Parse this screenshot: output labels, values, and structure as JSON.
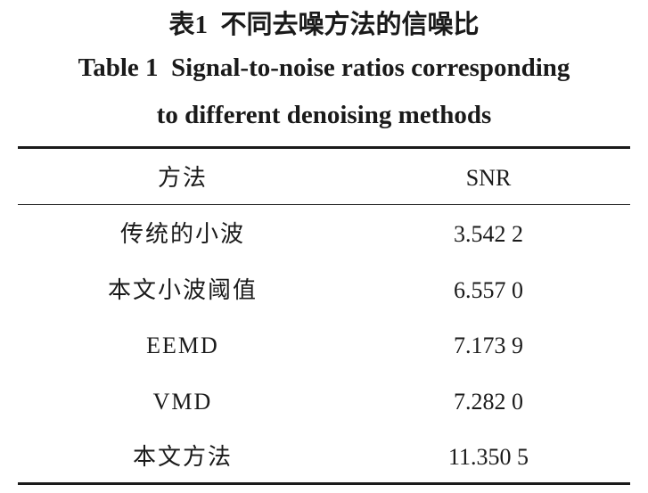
{
  "caption": {
    "title_cn": "表1  不同去噪方法的信噪比",
    "title_en_line1": "Table 1  Signal-to-noise ratios corresponding",
    "title_en_line2": "to different denoising methods"
  },
  "table": {
    "header": [
      "方法",
      "SNR"
    ],
    "rows": [
      [
        "传统的小波",
        "3.542 2"
      ],
      [
        "本文小波阈值",
        "6.557 0"
      ],
      [
        "EEMD",
        "7.173 9"
      ],
      [
        "VMD",
        "7.282 0"
      ],
      [
        "本文方法",
        "11.350 5"
      ]
    ]
  }
}
